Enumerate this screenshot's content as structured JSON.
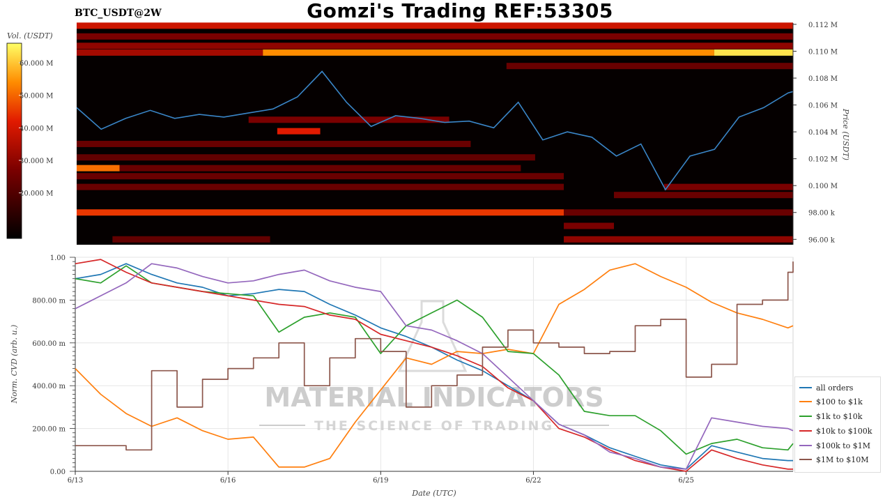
{
  "header": {
    "title": "Gomzi's Trading REF:53305",
    "symbol": "BTC_USDT@2W"
  },
  "colors": {
    "price_line": "#3a86c8",
    "heatmap_low": "#000000",
    "heatmap_mid": "#c40000",
    "heatmap_high": "#ffff66"
  },
  "watermark": {
    "line1": "MATERIAL INDICATORS",
    "line2": "THE SCIENCE OF TRADING"
  },
  "chart_data": [
    {
      "type": "heatmap",
      "name": "orderbook-liquidity-heatmap",
      "colorbar": {
        "label": "Vol. (USDT)",
        "ticks": [
          "60.000 M",
          "50.000 M",
          "40.000 M",
          "30.000 M",
          "20.000 M"
        ],
        "tick_values": [
          60,
          50,
          40,
          30,
          20
        ],
        "range": [
          6,
          66
        ]
      },
      "y_axis": {
        "label": "Price (USDT)",
        "ticks": [
          "0.112 M",
          "0.110 M",
          "0.108 M",
          "0.106 M",
          "0.104 M",
          "0.102 M",
          "0.100 M",
          "98.00 k",
          "96.00 k"
        ],
        "tick_values": [
          112000,
          110000,
          108000,
          106000,
          104000,
          102000,
          100000,
          98000,
          96000
        ],
        "range": [
          95600,
          112100
        ]
      },
      "liquidity_bands": [
        {
          "price": 111900,
          "start": 0.0,
          "end": 1.0,
          "intensity": 0.55
        },
        {
          "price": 111100,
          "start": 0.0,
          "end": 1.0,
          "intensity": 0.35
        },
        {
          "price": 110400,
          "start": 0.0,
          "end": 1.0,
          "intensity": 0.4
        },
        {
          "price": 109900,
          "start": 0.0,
          "end": 0.26,
          "intensity": 0.45
        },
        {
          "price": 109900,
          "start": 0.26,
          "end": 0.89,
          "intensity": 0.8
        },
        {
          "price": 109900,
          "start": 0.89,
          "end": 1.0,
          "intensity": 0.95
        },
        {
          "price": 108900,
          "start": 0.6,
          "end": 1.0,
          "intensity": 0.3
        },
        {
          "price": 104900,
          "start": 0.24,
          "end": 0.52,
          "intensity": 0.35
        },
        {
          "price": 104050,
          "start": 0.28,
          "end": 0.34,
          "intensity": 0.6
        },
        {
          "price": 103100,
          "start": 0.0,
          "end": 0.55,
          "intensity": 0.3
        },
        {
          "price": 102100,
          "start": 0.0,
          "end": 0.64,
          "intensity": 0.28
        },
        {
          "price": 101300,
          "start": 0.0,
          "end": 0.06,
          "intensity": 0.75
        },
        {
          "price": 101300,
          "start": 0.06,
          "end": 0.62,
          "intensity": 0.3
        },
        {
          "price": 100700,
          "start": 0.0,
          "end": 0.68,
          "intensity": 0.3
        },
        {
          "price": 99900,
          "start": 0.0,
          "end": 0.68,
          "intensity": 0.3
        },
        {
          "price": 99900,
          "start": 0.82,
          "end": 1.0,
          "intensity": 0.35
        },
        {
          "price": 99300,
          "start": 0.75,
          "end": 1.0,
          "intensity": 0.3
        },
        {
          "price": 98000,
          "start": 0.0,
          "end": 0.68,
          "intensity": 0.65
        },
        {
          "price": 98000,
          "start": 0.68,
          "end": 1.0,
          "intensity": 0.3
        },
        {
          "price": 97000,
          "start": 0.68,
          "end": 0.75,
          "intensity": 0.35
        },
        {
          "price": 96000,
          "start": 0.05,
          "end": 0.27,
          "intensity": 0.28
        },
        {
          "price": 96000,
          "start": 0.68,
          "end": 1.0,
          "intensity": 0.4
        }
      ],
      "price_series": {
        "x": [
          0,
          0.5,
          1,
          1.5,
          2,
          2.5,
          3,
          3.5,
          4,
          4.5,
          5,
          5.5,
          6,
          6.5,
          7,
          7.5,
          8,
          8.5,
          9,
          9.5,
          10,
          10.5,
          11,
          11.5,
          12,
          12.5,
          13,
          13.5,
          14,
          14.5,
          14.6
        ],
        "y": [
          105800,
          104200,
          105000,
          105600,
          105000,
          105300,
          105100,
          105400,
          105700,
          106600,
          108500,
          106200,
          104400,
          105200,
          105000,
          104700,
          104800,
          104300,
          106200,
          103400,
          104000,
          103600,
          102200,
          103100,
          99700,
          102200,
          102700,
          105100,
          105800,
          106900,
          107000
        ]
      }
    },
    {
      "type": "line",
      "name": "normalized-cvd",
      "xlabel": "Date (UTC)",
      "ylabel": "Norm. CVD (arb. u.)",
      "x_ticks": [
        "6/13",
        "6/16",
        "6/19",
        "6/22",
        "6/25"
      ],
      "x_tick_values": [
        0,
        3,
        6,
        9,
        12
      ],
      "xlim": [
        0,
        14.1
      ],
      "y_ticks": [
        "0.00",
        "200.00 m",
        "400.00 m",
        "600.00 m",
        "800.00 m",
        "1.00"
      ],
      "y_tick_values": [
        0,
        0.2,
        0.4,
        0.6,
        0.8,
        1.0
      ],
      "ylim": [
        0,
        1.0
      ],
      "grid": true,
      "legend_position": "bottom-right",
      "x": [
        0,
        0.5,
        1,
        1.5,
        2,
        2.5,
        3,
        3.5,
        4,
        4.5,
        5,
        5.5,
        6,
        6.5,
        7,
        7.5,
        8,
        8.5,
        9,
        9.5,
        10,
        10.5,
        11,
        11.5,
        12,
        12.5,
        13,
        13.5,
        14,
        14.1
      ],
      "series": [
        {
          "name": "all orders",
          "color": "#1f77b4",
          "values": [
            0.9,
            0.92,
            0.97,
            0.92,
            0.88,
            0.86,
            0.82,
            0.83,
            0.85,
            0.84,
            0.78,
            0.73,
            0.67,
            0.63,
            0.58,
            0.52,
            0.47,
            0.4,
            0.33,
            0.22,
            0.17,
            0.11,
            0.07,
            0.03,
            0.01,
            0.12,
            0.09,
            0.06,
            0.05,
            0.05
          ]
        },
        {
          "name": "$100 to $1k",
          "color": "#ff7f0e",
          "values": [
            0.48,
            0.36,
            0.27,
            0.21,
            0.25,
            0.19,
            0.15,
            0.16,
            0.02,
            0.02,
            0.06,
            0.23,
            0.38,
            0.53,
            0.5,
            0.56,
            0.55,
            0.57,
            0.55,
            0.78,
            0.85,
            0.94,
            0.97,
            0.91,
            0.86,
            0.79,
            0.74,
            0.71,
            0.67,
            0.68
          ]
        },
        {
          "name": "$1k to $10k",
          "color": "#2ca02c",
          "values": [
            0.9,
            0.88,
            0.96,
            0.88,
            0.86,
            0.84,
            0.83,
            0.82,
            0.65,
            0.72,
            0.74,
            0.72,
            0.55,
            0.68,
            0.74,
            0.8,
            0.72,
            0.56,
            0.55,
            0.45,
            0.28,
            0.26,
            0.26,
            0.19,
            0.08,
            0.13,
            0.15,
            0.11,
            0.1,
            0.13
          ]
        },
        {
          "name": "$10k to $100k",
          "color": "#d62728",
          "values": [
            0.97,
            0.99,
            0.93,
            0.88,
            0.86,
            0.84,
            0.82,
            0.8,
            0.78,
            0.77,
            0.73,
            0.71,
            0.64,
            0.61,
            0.58,
            0.54,
            0.49,
            0.39,
            0.33,
            0.2,
            0.16,
            0.1,
            0.05,
            0.02,
            0.0,
            0.1,
            0.06,
            0.03,
            0.01,
            0.01
          ]
        },
        {
          "name": "$100k to $1M",
          "color": "#9467bd",
          "values": [
            0.76,
            0.82,
            0.88,
            0.97,
            0.95,
            0.91,
            0.88,
            0.89,
            0.92,
            0.94,
            0.89,
            0.86,
            0.84,
            0.68,
            0.66,
            0.61,
            0.55,
            0.44,
            0.33,
            0.22,
            0.17,
            0.09,
            0.06,
            0.02,
            0.01,
            0.25,
            0.23,
            0.21,
            0.2,
            0.19
          ]
        },
        {
          "name": "$1M to $10M",
          "color": "#8c564b",
          "values": [
            0.12,
            0.12,
            0.1,
            0.47,
            0.3,
            0.43,
            0.48,
            0.53,
            0.6,
            0.4,
            0.53,
            0.62,
            0.56,
            0.3,
            0.4,
            0.45,
            0.58,
            0.66,
            0.6,
            0.58,
            0.55,
            0.56,
            0.68,
            0.71,
            0.44,
            0.5,
            0.78,
            0.8,
            0.93,
            0.98
          ]
        }
      ]
    }
  ]
}
